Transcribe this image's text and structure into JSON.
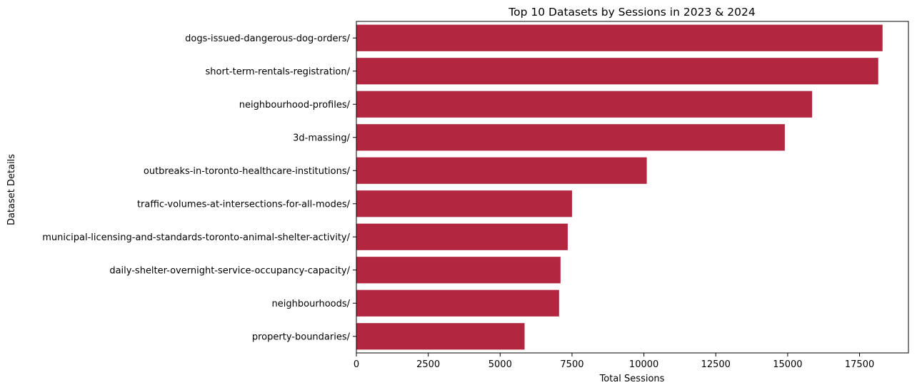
{
  "chart_data": {
    "type": "bar",
    "orientation": "horizontal",
    "title": "Top 10 Datasets by Sessions in 2023 & 2024",
    "xlabel": "Total Sessions",
    "ylabel": "Dataset Details",
    "bar_color": "#b22640",
    "xlim": [
      0,
      19200
    ],
    "xticks": [
      0,
      2500,
      5000,
      7500,
      10000,
      12500,
      15000,
      17500
    ],
    "grid": false,
    "categories": [
      "dogs-issued-dangerous-dog-orders/",
      "short-term-rentals-registration/",
      "neighbourhood-profiles/",
      "3d-massing/",
      "outbreaks-in-toronto-healthcare-institutions/",
      "traffic-volumes-at-intersections-for-all-modes/",
      "municipal-licensing-and-standards-toronto-animal-shelter-activity/",
      "daily-shelter-overnight-service-occupancy-capacity/",
      "neighbourhoods/",
      "property-boundaries/"
    ],
    "values": [
      18300,
      18150,
      15850,
      14900,
      10100,
      7500,
      7350,
      7100,
      7050,
      5850
    ]
  }
}
